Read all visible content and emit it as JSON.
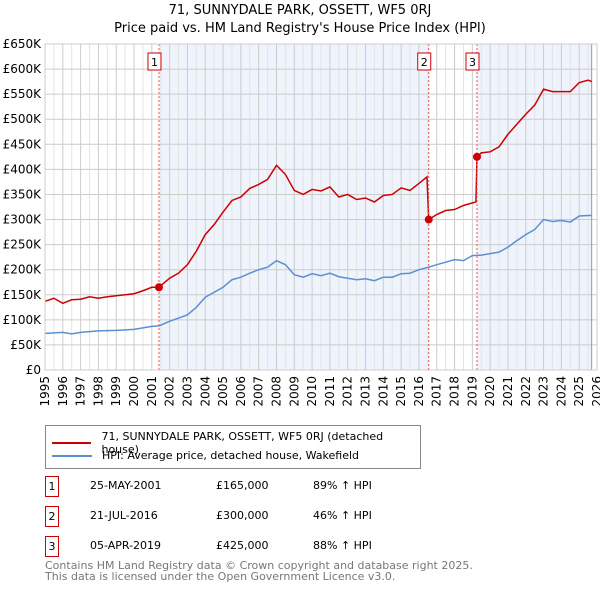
{
  "title": "71, SUNNYDALE PARK, OSSETT, WF5 0RJ",
  "subtitle": "Price paid vs. HM Land Registry's House Price Index (HPI)",
  "chart_data": {
    "type": "line",
    "title": "71, SUNNYDALE PARK, OSSETT, WF5 0RJ — Price paid vs. HM Land Registry's House Price Index (HPI)",
    "xlim": [
      1995,
      2026
    ],
    "ylim": [
      0,
      650000
    ],
    "x_ticks": [
      "1995",
      "1996",
      "1997",
      "1998",
      "1999",
      "2000",
      "2001",
      "2002",
      "2003",
      "2004",
      "2005",
      "2006",
      "2007",
      "2008",
      "2009",
      "2010",
      "2011",
      "2012",
      "2013",
      "2014",
      "2015",
      "2016",
      "2017",
      "2018",
      "2019",
      "2020",
      "2021",
      "2022",
      "2023",
      "2024",
      "2025",
      "2026"
    ],
    "y_ticks": [
      "£0",
      "£50K",
      "£100K",
      "£150K",
      "£200K",
      "£250K",
      "£300K",
      "£350K",
      "£400K",
      "£450K",
      "£500K",
      "£550K",
      "£600K",
      "£650K"
    ],
    "grid": true,
    "colors": {
      "property": "#cc0000",
      "hpi": "#5b8fd4",
      "shade": "#eef3fc"
    },
    "series": [
      {
        "name": "71, SUNNYDALE PARK, OSSETT, WF5 0RJ (detached house)",
        "key": "property",
        "x": [
          1995,
          1995.5,
          1996,
          1996.5,
          1997,
          1997.5,
          1998,
          1998.5,
          1999,
          1999.5,
          2000,
          2000.5,
          2001,
          2001.4,
          2002,
          2002.5,
          2003,
          2003.5,
          2004,
          2004.5,
          2005,
          2005.5,
          2006,
          2006.5,
          2007,
          2007.5,
          2008,
          2008.5,
          2009,
          2009.5,
          2010,
          2010.5,
          2011,
          2011.5,
          2012,
          2012.5,
          2013,
          2013.5,
          2014,
          2014.5,
          2015,
          2015.5,
          2016,
          2016.45,
          2016.55,
          2017,
          2017.5,
          2018,
          2018.5,
          2019.2,
          2019.26,
          2019.5,
          2020,
          2020.5,
          2021,
          2021.5,
          2022,
          2022.5,
          2023,
          2023.5,
          2024,
          2024.5,
          2025,
          2025.5,
          2025.7
        ],
        "y": [
          137,
          143,
          133,
          140,
          141,
          146,
          143,
          146,
          148,
          150,
          152,
          158,
          165,
          165,
          183,
          193,
          210,
          237,
          270,
          290,
          315,
          338,
          345,
          362,
          370,
          380,
          408,
          390,
          358,
          350,
          360,
          357,
          365,
          345,
          350,
          340,
          343,
          335,
          348,
          350,
          363,
          358,
          372,
          385,
          300,
          310,
          318,
          320,
          328,
          335,
          425,
          433,
          435,
          445,
          470,
          490,
          510,
          528,
          560,
          555,
          555,
          555,
          573,
          578,
          575
        ]
      },
      {
        "name": "HPI: Average price, detached house, Wakefield",
        "key": "hpi",
        "x": [
          1995,
          1996,
          1996.5,
          1997,
          1998,
          1999,
          2000,
          2001,
          2001.4,
          2002,
          2003,
          2003.5,
          2004,
          2005,
          2005.5,
          2006,
          2006.5,
          2007,
          2007.5,
          2008,
          2008.5,
          2009,
          2009.5,
          2010,
          2010.5,
          2011,
          2011.5,
          2012,
          2012.5,
          2013,
          2013.5,
          2014,
          2014.5,
          2015,
          2015.5,
          2016,
          2016.55,
          2017,
          2017.5,
          2018,
          2018.5,
          2019,
          2019.5,
          2020,
          2020.5,
          2021,
          2021.5,
          2022,
          2022.5,
          2023,
          2023.5,
          2024,
          2024.5,
          2025,
          2025.5,
          2025.7
        ],
        "y": [
          73,
          75,
          72,
          75,
          78,
          79,
          81,
          87,
          88,
          97,
          110,
          125,
          145,
          165,
          180,
          185,
          193,
          200,
          205,
          218,
          210,
          190,
          185,
          192,
          188,
          193,
          186,
          183,
          180,
          182,
          178,
          185,
          185,
          192,
          193,
          200,
          205,
          210,
          215,
          220,
          218,
          228,
          229,
          232,
          235,
          245,
          258,
          270,
          280,
          300,
          296,
          298,
          295,
          307,
          308,
          308
        ]
      }
    ],
    "y_unit": "thousands GBP",
    "sales": [
      {
        "label": "1",
        "x": 2001.4,
        "y": 165,
        "date": "25-MAY-2001",
        "price": "£165,000",
        "hpi": "89% ↑ HPI"
      },
      {
        "label": "2",
        "x": 2016.55,
        "y": 300,
        "date": "21-JUL-2016",
        "price": "£300,000",
        "hpi": "46% ↑ HPI"
      },
      {
        "label": "3",
        "x": 2019.26,
        "y": 425,
        "date": "05-APR-2019",
        "price": "£425,000",
        "hpi": "88% ↑ HPI"
      }
    ]
  },
  "legend": {
    "property": "71, SUNNYDALE PARK, OSSETT, WF5 0RJ (detached house)",
    "hpi": "HPI: Average price, detached house, Wakefield"
  },
  "footer": {
    "line1": "Contains HM Land Registry data © Crown copyright and database right 2025.",
    "line2": "This data is licensed under the Open Government Licence v3.0."
  }
}
